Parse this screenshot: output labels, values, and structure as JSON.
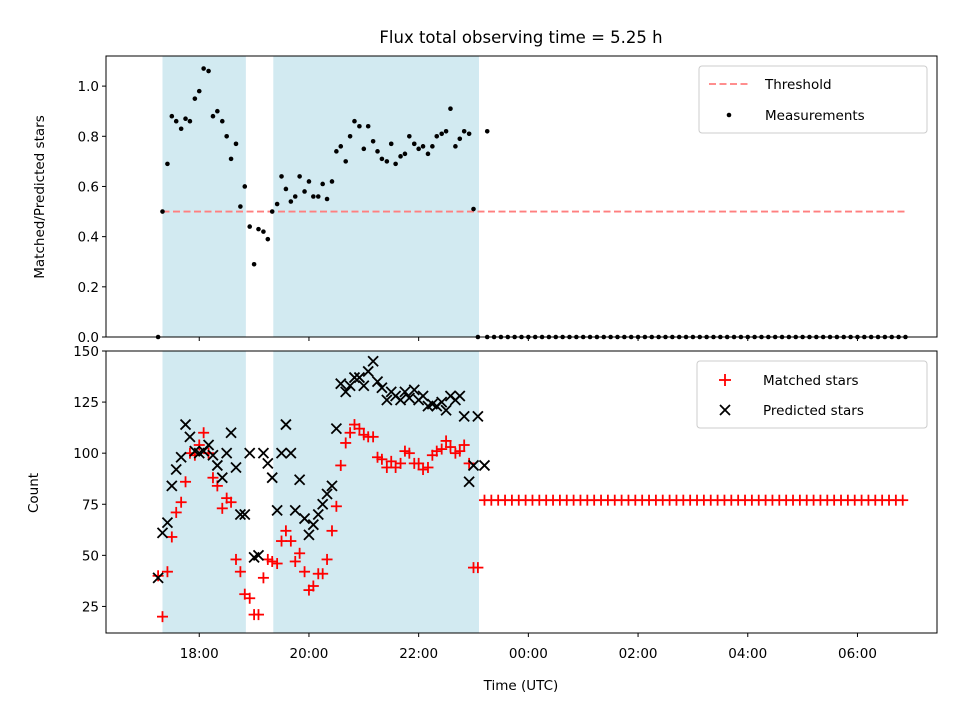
{
  "chart_data": {
    "title": "Flux total observing time = 5.25 h",
    "xlabel": "Time (UTC)",
    "x_tick_labels": [
      "18:00",
      "20:00",
      "22:00",
      "00:00",
      "02:00",
      "04:00",
      "06:00"
    ],
    "x_unit": "hours since 00:00 on observing day",
    "x_ticks": [
      18,
      20,
      22,
      24,
      26,
      28,
      30
    ],
    "xlim": [
      16.3,
      31.45
    ],
    "shaded_spans": [
      [
        17.33,
        18.85
      ],
      [
        19.35,
        23.1
      ]
    ],
    "colors": {
      "threshold": "#ff7f7f",
      "measurements": "#000000",
      "matched": "#ff0000",
      "predicted": "#000000",
      "shade": "#add8e6"
    },
    "panels": [
      {
        "type": "scatter",
        "ylabel": "Matched/Predicted stars",
        "ylim": [
          0,
          1.12
        ],
        "y_ticks": [
          0.0,
          0.2,
          0.4,
          0.6,
          0.8,
          1.0
        ],
        "y_tick_labels": [
          "0.0",
          "0.2",
          "0.4",
          "0.6",
          "0.8",
          "1.0"
        ],
        "legend_position": "top-right",
        "legend": [
          "Threshold",
          "Measurements"
        ],
        "threshold": {
          "value": 0.5,
          "x_range": [
            17.33,
            30.9
          ]
        },
        "series": [
          {
            "name": "Measurements",
            "marker": "dot",
            "x": [
              17.25,
              17.33,
              17.42,
              17.5,
              17.58,
              17.67,
              17.75,
              17.83,
              17.92,
              18.0,
              18.08,
              18.17,
              18.25,
              18.33,
              18.42,
              18.5,
              18.58,
              18.67,
              18.75,
              18.83,
              18.92,
              19.0,
              19.08,
              19.17,
              19.25,
              19.33,
              19.42,
              19.5,
              19.58,
              19.67,
              19.75,
              19.83,
              19.92,
              20.0,
              20.08,
              20.17,
              20.25,
              20.33,
              20.42,
              20.5,
              20.58,
              20.67,
              20.75,
              20.83,
              20.92,
              21.0,
              21.08,
              21.17,
              21.25,
              21.33,
              21.42,
              21.5,
              21.58,
              21.67,
              21.75,
              21.83,
              21.92,
              22.0,
              22.08,
              22.17,
              22.25,
              22.33,
              22.42,
              22.5,
              22.58,
              22.67,
              22.75,
              22.83,
              22.92,
              23.0,
              23.08,
              23.25
            ],
            "y": [
              0.0,
              0.5,
              0.69,
              0.88,
              0.86,
              0.83,
              0.87,
              0.86,
              0.95,
              0.98,
              1.07,
              1.06,
              0.88,
              0.9,
              0.86,
              0.8,
              0.71,
              0.77,
              0.52,
              0.6,
              0.44,
              0.29,
              0.43,
              0.42,
              0.39,
              0.5,
              0.53,
              0.64,
              0.59,
              0.54,
              0.56,
              0.64,
              0.58,
              0.62,
              0.56,
              0.56,
              0.61,
              0.55,
              0.62,
              0.74,
              0.76,
              0.7,
              0.8,
              0.86,
              0.84,
              0.75,
              0.84,
              0.78,
              0.74,
              0.71,
              0.7,
              0.77,
              0.69,
              0.72,
              0.73,
              0.8,
              0.77,
              0.75,
              0.76,
              0.73,
              0.76,
              0.8,
              0.81,
              0.82,
              0.91,
              0.76,
              0.79,
              0.82,
              0.81,
              0.51,
              0.0,
              0.82
            ],
            "zero_run": {
              "from": 23.25,
              "to": 30.9,
              "step": 0.125,
              "value": 0.0
            }
          }
        ]
      },
      {
        "type": "scatter",
        "ylabel": "Count",
        "ylim": [
          12,
          150
        ],
        "y_ticks": [
          25,
          50,
          75,
          100,
          125,
          150
        ],
        "y_tick_labels": [
          "25",
          "50",
          "75",
          "100",
          "125",
          "150"
        ],
        "legend_position": "top-right",
        "legend": [
          "Matched stars",
          "Predicted stars"
        ],
        "series": [
          {
            "name": "Matched stars",
            "marker": "plus",
            "x": [
              17.25,
              17.33,
              17.42,
              17.5,
              17.58,
              17.67,
              17.75,
              17.83,
              17.92,
              18.0,
              18.08,
              18.17,
              18.25,
              18.33,
              18.42,
              18.5,
              18.58,
              18.67,
              18.75,
              18.83,
              18.92,
              19.0,
              19.08,
              19.17,
              19.25,
              19.33,
              19.42,
              19.5,
              19.58,
              19.67,
              19.75,
              19.83,
              19.92,
              20.0,
              20.08,
              20.17,
              20.25,
              20.33,
              20.42,
              20.5,
              20.58,
              20.67,
              20.75,
              20.83,
              20.92,
              21.0,
              21.08,
              21.17,
              21.25,
              21.33,
              21.42,
              21.5,
              21.58,
              21.67,
              21.75,
              21.83,
              21.92,
              22.0,
              22.08,
              22.17,
              22.25,
              22.33,
              22.42,
              22.5,
              22.58,
              22.67,
              22.75,
              22.83,
              22.92,
              23.0,
              23.08
            ],
            "y": [
              40,
              20,
              42,
              59,
              71,
              76,
              86,
              100,
              99,
              104,
              110,
              100,
              88,
              84,
              73,
              78,
              76,
              48,
              42,
              31,
              29,
              21,
              21,
              39,
              48,
              47,
              46,
              57,
              62,
              57,
              47,
              51,
              42,
              33,
              35,
              41,
              41,
              48,
              62,
              74,
              94,
              105,
              110,
              114,
              112,
              109,
              108,
              108,
              98,
              97,
              93,
              96,
              93,
              95,
              101,
              100,
              95,
              95,
              92,
              93,
              99,
              101,
              102,
              106,
              103,
              100,
              101,
              104,
              95,
              44,
              44
            ],
            "constant_run": {
              "from": 23.2,
              "to": 30.9,
              "step": 0.125,
              "value": 77
            }
          },
          {
            "name": "Predicted stars",
            "marker": "x",
            "x": [
              17.25,
              17.33,
              17.42,
              17.5,
              17.58,
              17.67,
              17.75,
              17.83,
              17.92,
              18.0,
              18.08,
              18.17,
              18.25,
              18.33,
              18.42,
              18.5,
              18.58,
              18.67,
              18.75,
              18.83,
              18.92,
              19.0,
              19.08,
              19.17,
              19.25,
              19.33,
              19.42,
              19.5,
              19.58,
              19.67,
              19.75,
              19.83,
              19.92,
              20.0,
              20.08,
              20.17,
              20.25,
              20.33,
              20.42,
              20.5,
              20.58,
              20.67,
              20.75,
              20.83,
              20.92,
              21.0,
              21.08,
              21.17,
              21.25,
              21.33,
              21.42,
              21.5,
              21.58,
              21.67,
              21.75,
              21.83,
              21.92,
              22.0,
              22.08,
              22.17,
              22.25,
              22.33,
              22.42,
              22.5,
              22.58,
              22.67,
              22.75,
              22.83,
              22.92,
              23.0,
              23.08,
              23.2
            ],
            "y": [
              39,
              61,
              66,
              84,
              92,
              98,
              114,
              108,
              101,
              100,
              101,
              104,
              99,
              94,
              88,
              100,
              110,
              93,
              70,
              70,
              100,
              49,
              50,
              100,
              95,
              88,
              72,
              100,
              114,
              100,
              72,
              87,
              68,
              60,
              65,
              70,
              75,
              80,
              84,
              112,
              134,
              130,
              133,
              137,
              137,
              133,
              140,
              145,
              135,
              132,
              126,
              130,
              128,
              126,
              130,
              127,
              131,
              126,
              128,
              123,
              124,
              123,
              125,
              121,
              128,
              126,
              128,
              118,
              86,
              94,
              118,
              94
            ]
          }
        ]
      }
    ]
  }
}
